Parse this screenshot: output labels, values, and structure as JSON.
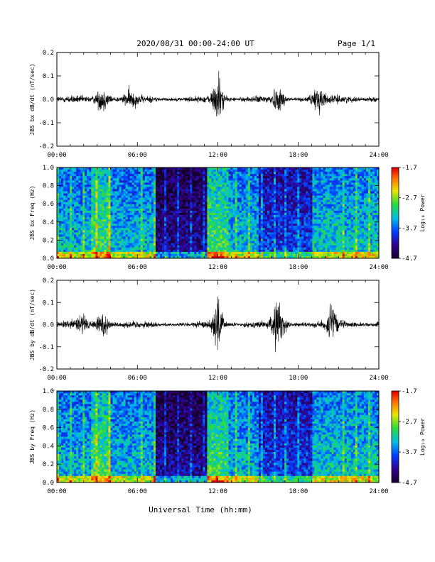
{
  "header": {
    "title": "2020/08/31  00:00-24:00 UT",
    "page": "Page 1/1"
  },
  "xaxis": {
    "label": "Universal Time (hh:mm)",
    "ticks": [
      "00:00",
      "06:00",
      "12:00",
      "18:00",
      "24:00"
    ],
    "range_hours": [
      0,
      24
    ]
  },
  "colorbar": {
    "label": "Log₁₀ Power",
    "ticks": [
      "-1.7",
      "-2.7",
      "-3.7",
      "-4.7"
    ],
    "range": [
      -4.7,
      -1.7
    ]
  },
  "chart_data": [
    {
      "type": "line",
      "name": "bx-waveform",
      "ylabel": "JBS bx dB/dt (nT/sec)",
      "ylim": [
        -0.2,
        0.2
      ],
      "yticks": [
        "0.2",
        "0.1",
        "0.0",
        "-0.1",
        "-0.2"
      ],
      "bursts": [
        {
          "t": 3.4,
          "amp": 0.1
        },
        {
          "t": 5.5,
          "amp": 0.06
        },
        {
          "t": 12.0,
          "amp": 0.22
        },
        {
          "t": 16.5,
          "amp": 0.08
        },
        {
          "t": 19.5,
          "amp": 0.1
        }
      ]
    },
    {
      "type": "heatmap",
      "name": "bx-spectrogram",
      "ylabel": "JBS bx Freq (Hz)",
      "ylim": [
        0.0,
        1.0
      ],
      "yticks": [
        "1.0",
        "0.8",
        "0.6",
        "0.4",
        "0.2",
        "0.0"
      ]
    },
    {
      "type": "line",
      "name": "by-waveform",
      "ylabel": "JBS by dB/dt (nT/sec)",
      "ylim": [
        -0.2,
        0.2
      ],
      "yticks": [
        "0.2",
        "0.1",
        "0.0",
        "-0.1",
        "-0.2"
      ],
      "bursts": [
        {
          "t": 1.8,
          "amp": 0.08
        },
        {
          "t": 3.4,
          "amp": 0.12
        },
        {
          "t": 12.0,
          "amp": 0.24
        },
        {
          "t": 16.5,
          "amp": 0.2
        },
        {
          "t": 20.5,
          "amp": 0.14
        }
      ]
    },
    {
      "type": "heatmap",
      "name": "by-spectrogram",
      "ylabel": "JBS by Freq (Hz)",
      "ylim": [
        0.0,
        1.0
      ],
      "yticks": [
        "1.0",
        "0.8",
        "0.6",
        "0.4",
        "0.2",
        "0.0"
      ]
    }
  ]
}
